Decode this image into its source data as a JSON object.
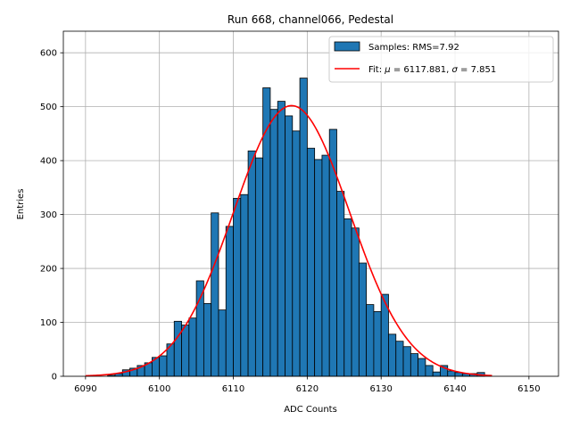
{
  "chart_data": {
    "type": "bar",
    "title": "Run 668, channel066, Pedestal",
    "xlabel": "ADC Counts",
    "ylabel": "Entries",
    "xlim": [
      6087,
      6154
    ],
    "ylim": [
      0,
      640
    ],
    "xticks": [
      6090,
      6100,
      6110,
      6120,
      6130,
      6140,
      6150
    ],
    "yticks": [
      0,
      100,
      200,
      300,
      400,
      500,
      600
    ],
    "grid": true,
    "legend_position": "top-right",
    "bin_width": 1,
    "histogram": {
      "name": "Samples: RMS=7.92",
      "color": "#1f77b4",
      "edge_color": "#000000",
      "bin_starts": [
        6093,
        6094,
        6095,
        6096,
        6097,
        6098,
        6099,
        6100,
        6101,
        6102,
        6103,
        6104,
        6105,
        6106,
        6107,
        6108,
        6109,
        6110,
        6111,
        6112,
        6113,
        6114,
        6115,
        6116,
        6117,
        6118,
        6119,
        6120,
        6121,
        6122,
        6123,
        6124,
        6125,
        6126,
        6127,
        6128,
        6129,
        6130,
        6131,
        6132,
        6133,
        6134,
        6135,
        6136,
        6137,
        6138,
        6139,
        6140,
        6141,
        6142,
        6143,
        6144
      ],
      "values": [
        2,
        5,
        12,
        15,
        20,
        25,
        35,
        38,
        60,
        102,
        95,
        108,
        177,
        135,
        303,
        123,
        278,
        330,
        337,
        418,
        405,
        535,
        495,
        510,
        483,
        455,
        553,
        423,
        402,
        410,
        458,
        343,
        292,
        275,
        210,
        133,
        120,
        152,
        78,
        65,
        55,
        42,
        33,
        20,
        8,
        20,
        10,
        7,
        5,
        5,
        7,
        0
      ]
    },
    "fit": {
      "name_prefix": "Fit: ",
      "mu_label": "μ",
      "sigma_label": "σ",
      "mu_value": "6117.881",
      "sigma_value": "7.851",
      "mu": 6117.881,
      "sigma": 7.851,
      "amplitude": 502,
      "x_range": [
        6090,
        6145
      ],
      "color": "#ff0000"
    }
  }
}
